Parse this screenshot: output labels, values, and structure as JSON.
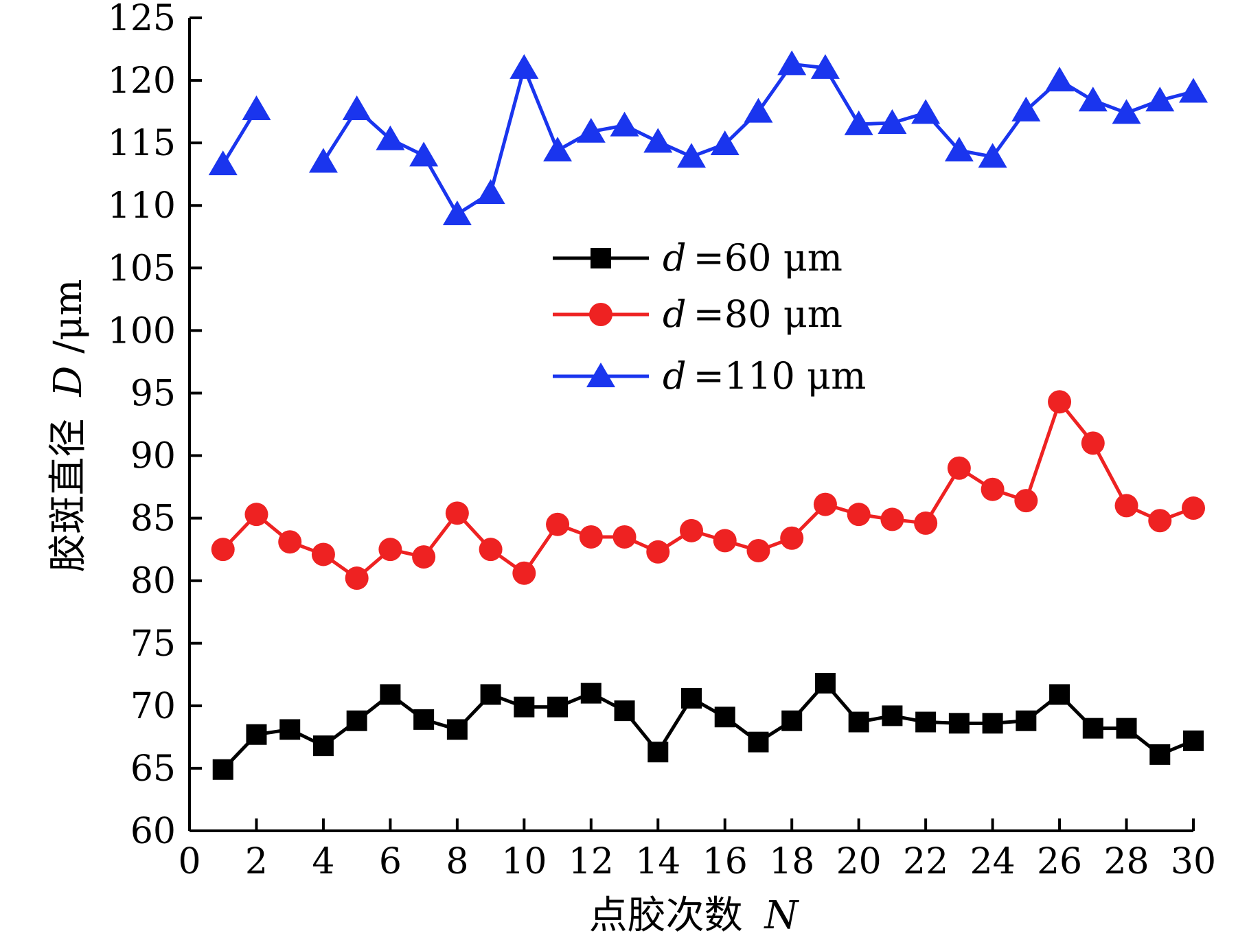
{
  "chart_data": {
    "type": "line",
    "xlabel": "点胶次数",
    "xlabel_var": "N",
    "ylabel": "胶斑直径",
    "ylabel_var": "D",
    "ylabel_unit": "/μm",
    "xlim": [
      0,
      30
    ],
    "ylim": [
      60,
      125
    ],
    "xticks": [
      "0",
      "2",
      "4",
      "6",
      "8",
      "10",
      "12",
      "14",
      "16",
      "18",
      "20",
      "22",
      "24",
      "26",
      "28",
      "30"
    ],
    "yticks": [
      "60",
      "65",
      "70",
      "75",
      "80",
      "85",
      "90",
      "95",
      "100",
      "105",
      "110",
      "115",
      "120",
      "125"
    ],
    "legend_position": "center",
    "grid": false,
    "series": [
      {
        "name": "d = 60 μm",
        "legend_var": "d",
        "legend_rest": "=60 μm",
        "color": "#000000",
        "marker": "square",
        "x": [
          1,
          2,
          3,
          4,
          5,
          6,
          7,
          8,
          9,
          10,
          11,
          12,
          13,
          14,
          15,
          16,
          17,
          18,
          19,
          20,
          21,
          22,
          23,
          24,
          25,
          26,
          27,
          28,
          29,
          30
        ],
        "y": [
          64.9,
          67.7,
          68.1,
          66.8,
          68.8,
          70.9,
          68.9,
          68.1,
          70.9,
          69.9,
          69.9,
          71.0,
          69.6,
          66.3,
          70.6,
          69.1,
          67.1,
          68.8,
          71.8,
          68.7,
          69.2,
          68.7,
          68.6,
          68.6,
          68.8,
          70.9,
          68.2,
          68.2,
          66.1,
          67.2
        ]
      },
      {
        "name": "d = 80 μm",
        "legend_var": "d",
        "legend_rest": "=80 μm",
        "color": "#ee2222",
        "marker": "circle",
        "x": [
          1,
          2,
          3,
          4,
          5,
          6,
          7,
          8,
          9,
          10,
          11,
          12,
          13,
          14,
          15,
          16,
          17,
          18,
          19,
          20,
          21,
          22,
          23,
          24,
          25,
          26,
          27,
          28,
          29,
          30
        ],
        "y": [
          82.5,
          85.3,
          83.1,
          82.1,
          80.2,
          82.5,
          81.9,
          85.4,
          82.5,
          80.6,
          84.5,
          83.5,
          83.5,
          82.3,
          84.0,
          83.2,
          82.4,
          83.4,
          86.1,
          85.3,
          84.9,
          84.6,
          89.0,
          87.3,
          86.4,
          94.3,
          91.0,
          86.0,
          84.8,
          85.8
        ]
      },
      {
        "name": "d = 110 μm",
        "legend_var": "d",
        "legend_rest": "=110 μm",
        "color": "#1a35ee",
        "marker": "triangle",
        "x": [
          1,
          2,
          3,
          4,
          5,
          6,
          7,
          8,
          9,
          10,
          11,
          12,
          13,
          14,
          15,
          16,
          17,
          18,
          19,
          20,
          21,
          22,
          23,
          24,
          25,
          26,
          27,
          28,
          29,
          30
        ],
        "y": [
          113.3,
          117.7,
          null,
          113.5,
          117.7,
          115.3,
          114.0,
          109.3,
          111.0,
          121.0,
          114.4,
          115.9,
          116.4,
          115.1,
          113.9,
          114.9,
          117.5,
          121.3,
          121.0,
          116.5,
          116.6,
          117.4,
          114.4,
          113.9,
          117.6,
          120.0,
          118.4,
          117.4,
          118.4,
          119.1
        ]
      }
    ]
  }
}
